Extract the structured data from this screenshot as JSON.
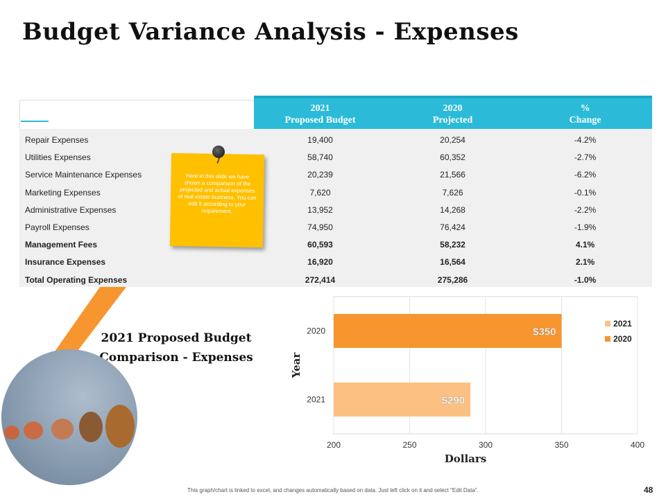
{
  "title": "Budget Variance Analysis - Expenses",
  "table": {
    "headers": [
      {
        "line1": "2021",
        "line2": "Proposed Budget"
      },
      {
        "line1": "2020",
        "line2": "Projected"
      },
      {
        "line1": "%",
        "line2": "Change"
      }
    ],
    "rows": [
      {
        "label": "Repair Expenses",
        "budget": "19,400",
        "projected": "20,254",
        "change": "-4.2%",
        "bold": false
      },
      {
        "label": "Utilities Expenses",
        "budget": "58,740",
        "projected": "60,352",
        "change": "-2.7%",
        "bold": false
      },
      {
        "label": "Service Maintenance Expenses",
        "budget": "20,239",
        "projected": "21,566",
        "change": "-6.2%",
        "bold": false
      },
      {
        "label": "Marketing Expenses",
        "budget": "7,620",
        "projected": "7,626",
        "change": "-0.1%",
        "bold": false
      },
      {
        "label": "Administrative Expenses",
        "budget": "13,952",
        "projected": "14,268",
        "change": "-2.2%",
        "bold": false
      },
      {
        "label": "Payroll Expenses",
        "budget": "74,950",
        "projected": "76,424",
        "change": "-1.9%",
        "bold": false
      },
      {
        "label": "Management Fees",
        "budget": "60,593",
        "projected": "58,232",
        "change": "4.1%",
        "bold": true
      },
      {
        "label": "Insurance Expenses",
        "budget": "16,920",
        "projected": "16,564",
        "change": "2.1%",
        "bold": true
      },
      {
        "label": "Total Operating Expenses",
        "budget": "272,414",
        "projected": "275,286",
        "change": "-1.0%",
        "bold": true
      }
    ]
  },
  "note": {
    "text": "Here in this slide we have shown a comparison of the projected and actual expenses of real estate business. You can edit it according to your requirement."
  },
  "subtitle": {
    "line1": "2021 Proposed Budget",
    "line2": "Comparison - Expenses"
  },
  "chart_data": {
    "type": "bar",
    "orientation": "horizontal",
    "categories": [
      "2020",
      "2021"
    ],
    "values": [
      350,
      290
    ],
    "data_labels": [
      "$350",
      "$290"
    ],
    "bar_colors": [
      "#f7952f",
      "#fcc083"
    ],
    "xlabel": "Dollars",
    "ylabel": "Year",
    "xlim": [
      200,
      400
    ],
    "xticks": [
      "200",
      "250",
      "300",
      "350",
      "400"
    ],
    "legend": {
      "placement": "right",
      "entries": [
        {
          "label": "2021",
          "color": "#fcc083"
        },
        {
          "label": "2020",
          "color": "#f7952f"
        }
      ]
    },
    "grid": true
  },
  "footer": "This graph/chart is linked to excel, and changes automatically based on data. Just left click on it and select \"Edit Data\".",
  "page_number": "48",
  "colors": {
    "accent": "#2bbbd9",
    "note": "#ffc000",
    "orange": "#f7952f"
  }
}
